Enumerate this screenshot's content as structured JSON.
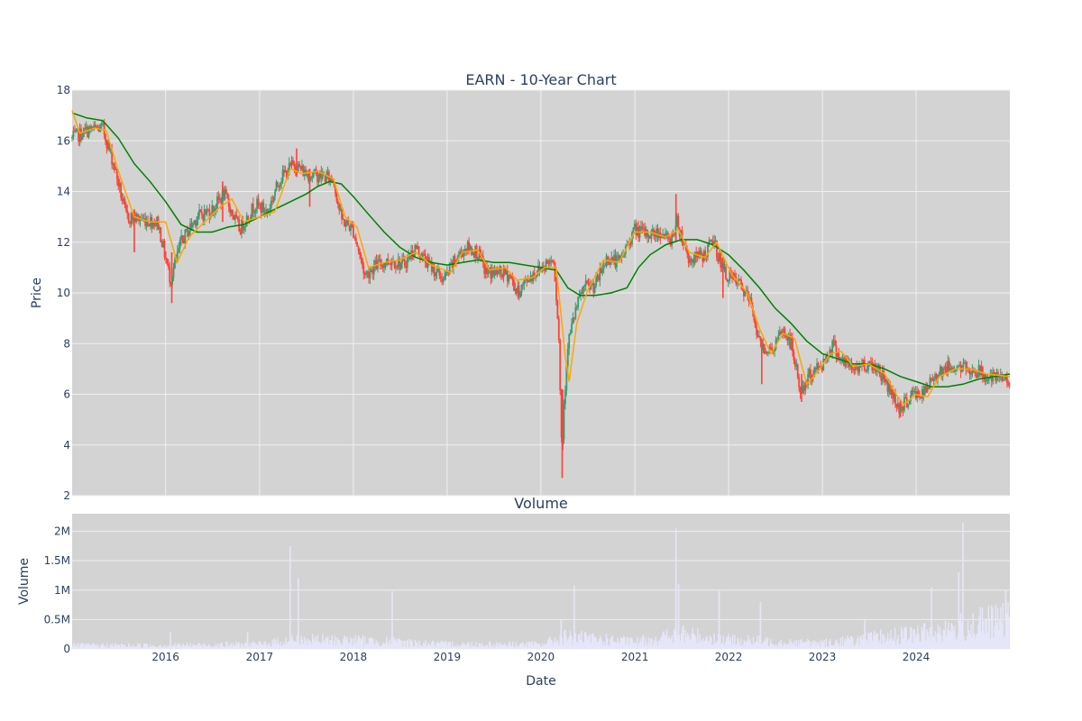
{
  "chart_data": [
    {
      "type": "candlestick",
      "title": "EARN - 10-Year Chart",
      "ylabel": "Price",
      "xlabel": "",
      "ylim": [
        2,
        18
      ],
      "y_ticks": [
        "2",
        "4",
        "6",
        "8",
        "10",
        "12",
        "14",
        "16",
        "18"
      ],
      "x_range": [
        "2015-01-02",
        "2024-12-31"
      ],
      "x_ticks": [
        "2016",
        "2017",
        "2018",
        "2019",
        "2020",
        "2021",
        "2022",
        "2023",
        "2024"
      ],
      "grid": true,
      "colors": {
        "plot_bg": "#d3d3d3",
        "grid": "#f0f0f0",
        "up": "#3d9970",
        "down": "#ff4136",
        "ma_short": "#ffa500",
        "ma_long": "#008000"
      },
      "close_path": [
        [
          "2015-01-02",
          16.1
        ],
        [
          "2015-03-01",
          16.4
        ],
        [
          "2015-05-01",
          16.5
        ],
        [
          "2015-06-15",
          15.0
        ],
        [
          "2015-08-01",
          13.0
        ],
        [
          "2015-10-01",
          12.9
        ],
        [
          "2015-12-01",
          12.8
        ],
        [
          "2016-01-20",
          10.5
        ],
        [
          "2016-03-01",
          12.0
        ],
        [
          "2016-05-01",
          13.0
        ],
        [
          "2016-07-01",
          13.3
        ],
        [
          "2016-08-15",
          13.9
        ],
        [
          "2016-10-15",
          12.5
        ],
        [
          "2016-12-15",
          13.5
        ],
        [
          "2017-02-01",
          13.2
        ],
        [
          "2017-03-20",
          14.5
        ],
        [
          "2017-05-15",
          15.1
        ],
        [
          "2017-07-01",
          14.7
        ],
        [
          "2017-09-01",
          14.6
        ],
        [
          "2017-10-15",
          14.5
        ],
        [
          "2017-11-15",
          12.9
        ],
        [
          "2017-12-31",
          12.5
        ],
        [
          "2018-02-15",
          10.7
        ],
        [
          "2018-04-01",
          11.1
        ],
        [
          "2018-06-01",
          11.3
        ],
        [
          "2018-07-15",
          11.1
        ],
        [
          "2018-08-31",
          11.8
        ],
        [
          "2018-10-15",
          11.2
        ],
        [
          "2018-12-20",
          10.5
        ],
        [
          "2019-02-01",
          11.3
        ],
        [
          "2019-03-15",
          11.8
        ],
        [
          "2019-04-30",
          11.6
        ],
        [
          "2019-06-01",
          10.8
        ],
        [
          "2019-07-15",
          10.8
        ],
        [
          "2019-09-01",
          10.7
        ],
        [
          "2019-10-01",
          10.0
        ],
        [
          "2019-11-15",
          10.6
        ],
        [
          "2020-01-02",
          11.0
        ],
        [
          "2020-02-20",
          11.4
        ],
        [
          "2020-03-10",
          8.5
        ],
        [
          "2020-03-23",
          3.5
        ],
        [
          "2020-03-30",
          5.5
        ],
        [
          "2020-04-15",
          8.0
        ],
        [
          "2020-05-15",
          9.3
        ],
        [
          "2020-06-15",
          10.2
        ],
        [
          "2020-08-01",
          10.3
        ],
        [
          "2020-09-15",
          11.4
        ],
        [
          "2020-11-01",
          11.2
        ],
        [
          "2020-12-31",
          12.5
        ],
        [
          "2021-02-15",
          12.3
        ],
        [
          "2021-04-15",
          12.4
        ],
        [
          "2021-05-15",
          12.0
        ],
        [
          "2021-06-15",
          12.8
        ],
        [
          "2021-07-31",
          11.3
        ],
        [
          "2021-09-30",
          11.5
        ],
        [
          "2021-11-01",
          12.1
        ],
        [
          "2021-12-15",
          10.8
        ],
        [
          "2022-02-15",
          10.3
        ],
        [
          "2022-04-01",
          9.5
        ],
        [
          "2022-05-01",
          8.0
        ],
        [
          "2022-06-15",
          7.7
        ],
        [
          "2022-08-01",
          8.5
        ],
        [
          "2022-09-01",
          8.0
        ],
        [
          "2022-10-10",
          6.0
        ],
        [
          "2022-11-15",
          6.8
        ],
        [
          "2023-01-01",
          7.2
        ],
        [
          "2023-02-10",
          8.0
        ],
        [
          "2023-03-20",
          7.3
        ],
        [
          "2023-05-01",
          7.0
        ],
        [
          "2023-06-15",
          7.2
        ],
        [
          "2023-08-01",
          7.1
        ],
        [
          "2023-09-15",
          6.3
        ],
        [
          "2023-10-31",
          5.4
        ],
        [
          "2023-12-15",
          6.0
        ],
        [
          "2024-02-01",
          6.0
        ],
        [
          "2024-03-15",
          6.8
        ],
        [
          "2024-04-15",
          7.0
        ],
        [
          "2024-06-01",
          7.1
        ],
        [
          "2024-07-15",
          7.0
        ],
        [
          "2024-09-01",
          6.9
        ],
        [
          "2024-10-15",
          6.6
        ],
        [
          "2024-12-31",
          6.6
        ]
      ],
      "wicks": [
        [
          "2015-09-01",
          11.6,
          13.3
        ],
        [
          "2016-01-25",
          9.6,
          11.6
        ],
        [
          "2016-08-10",
          12.8,
          14.4
        ],
        [
          "2017-05-25",
          14.6,
          15.7
        ],
        [
          "2017-07-15",
          13.4,
          14.9
        ],
        [
          "2020-03-24",
          2.7,
          5.0
        ],
        [
          "2020-03-26",
          3.8,
          6.2
        ],
        [
          "2021-06-10",
          12.0,
          13.9
        ],
        [
          "2021-12-10",
          9.8,
          11.4
        ],
        [
          "2022-05-10",
          6.4,
          8.2
        ],
        [
          "2022-10-12",
          5.7,
          6.8
        ],
        [
          "2023-11-01",
          5.1,
          5.8
        ]
      ],
      "ma_short_path": [
        [
          "2015-01-02",
          17.2
        ],
        [
          "2015-02-01",
          16.3
        ],
        [
          "2015-04-01",
          16.5
        ],
        [
          "2015-05-15",
          16.4
        ],
        [
          "2015-07-01",
          14.8
        ],
        [
          "2015-09-01",
          13.0
        ],
        [
          "2015-11-01",
          12.8
        ],
        [
          "2016-01-01",
          12.8
        ],
        [
          "2016-02-15",
          11.2
        ],
        [
          "2016-04-01",
          12.2
        ],
        [
          "2016-06-01",
          12.8
        ],
        [
          "2016-08-01",
          13.4
        ],
        [
          "2016-09-15",
          13.7
        ],
        [
          "2016-11-01",
          12.8
        ],
        [
          "2017-01-01",
          13.0
        ],
        [
          "2017-03-01",
          13.2
        ],
        [
          "2017-05-01",
          14.9
        ],
        [
          "2017-06-15",
          14.7
        ],
        [
          "2017-08-15",
          14.8
        ],
        [
          "2017-10-15",
          14.5
        ],
        [
          "2017-11-30",
          13.0
        ],
        [
          "2018-01-15",
          12.6
        ],
        [
          "2018-03-01",
          11.0
        ],
        [
          "2018-05-01",
          11.2
        ],
        [
          "2018-07-01",
          11.3
        ],
        [
          "2018-09-01",
          11.6
        ],
        [
          "2018-10-31",
          11.1
        ],
        [
          "2019-01-15",
          10.8
        ],
        [
          "2019-03-01",
          11.6
        ],
        [
          "2019-04-30",
          11.7
        ],
        [
          "2019-06-15",
          10.9
        ],
        [
          "2019-08-15",
          11.0
        ],
        [
          "2019-10-01",
          10.5
        ],
        [
          "2019-11-30",
          10.6
        ],
        [
          "2020-01-15",
          11.0
        ],
        [
          "2020-03-01",
          11.0
        ],
        [
          "2020-04-05",
          7.5
        ],
        [
          "2020-04-20",
          6.5
        ],
        [
          "2020-05-20",
          8.8
        ],
        [
          "2020-07-01",
          10.1
        ],
        [
          "2020-09-01",
          11.3
        ],
        [
          "2020-11-01",
          11.2
        ],
        [
          "2020-12-31",
          12.4
        ],
        [
          "2021-03-01",
          12.4
        ],
        [
          "2021-05-01",
          12.2
        ],
        [
          "2021-06-20",
          12.5
        ],
        [
          "2021-08-01",
          11.6
        ],
        [
          "2021-10-01",
          11.4
        ],
        [
          "2021-11-15",
          12.0
        ],
        [
          "2022-01-15",
          10.7
        ],
        [
          "2022-03-15",
          10.0
        ],
        [
          "2022-05-01",
          8.6
        ],
        [
          "2022-06-15",
          7.6
        ],
        [
          "2022-08-01",
          8.4
        ],
        [
          "2022-09-15",
          8.2
        ],
        [
          "2022-11-01",
          6.4
        ],
        [
          "2022-12-15",
          6.9
        ],
        [
          "2023-02-01",
          7.6
        ],
        [
          "2023-03-15",
          7.7
        ],
        [
          "2023-05-01",
          7.1
        ],
        [
          "2023-07-01",
          7.2
        ],
        [
          "2023-09-01",
          6.8
        ],
        [
          "2023-10-15",
          6.0
        ],
        [
          "2023-11-15",
          5.6
        ],
        [
          "2024-01-01",
          6.0
        ],
        [
          "2024-02-15",
          5.9
        ],
        [
          "2024-04-01",
          6.7
        ],
        [
          "2024-06-01",
          7.0
        ],
        [
          "2024-08-01",
          7.0
        ],
        [
          "2024-10-01",
          6.8
        ],
        [
          "2024-12-31",
          6.7
        ]
      ],
      "ma_long_path": [
        [
          "2015-01-02",
          17.1
        ],
        [
          "2015-03-01",
          16.9
        ],
        [
          "2015-05-01",
          16.8
        ],
        [
          "2015-07-01",
          16.1
        ],
        [
          "2015-09-01",
          15.1
        ],
        [
          "2015-11-01",
          14.4
        ],
        [
          "2016-01-01",
          13.6
        ],
        [
          "2016-03-01",
          12.7
        ],
        [
          "2016-05-01",
          12.4
        ],
        [
          "2016-07-01",
          12.4
        ],
        [
          "2016-09-01",
          12.6
        ],
        [
          "2016-11-01",
          12.7
        ],
        [
          "2017-01-01",
          13.0
        ],
        [
          "2017-03-01",
          13.3
        ],
        [
          "2017-05-01",
          13.6
        ],
        [
          "2017-07-01",
          13.9
        ],
        [
          "2017-08-15",
          14.2
        ],
        [
          "2017-10-01",
          14.4
        ],
        [
          "2017-11-15",
          14.3
        ],
        [
          "2018-01-01",
          13.8
        ],
        [
          "2018-03-01",
          13.1
        ],
        [
          "2018-05-01",
          12.4
        ],
        [
          "2018-07-01",
          11.8
        ],
        [
          "2018-09-01",
          11.4
        ],
        [
          "2018-11-01",
          11.2
        ],
        [
          "2019-01-01",
          11.1
        ],
        [
          "2019-03-01",
          11.2
        ],
        [
          "2019-05-01",
          11.3
        ],
        [
          "2019-07-01",
          11.2
        ],
        [
          "2019-09-01",
          11.2
        ],
        [
          "2019-11-01",
          11.1
        ],
        [
          "2020-01-01",
          11.0
        ],
        [
          "2020-03-01",
          10.9
        ],
        [
          "2020-04-15",
          10.2
        ],
        [
          "2020-06-01",
          9.9
        ],
        [
          "2020-08-01",
          9.9
        ],
        [
          "2020-10-01",
          10.0
        ],
        [
          "2020-12-01",
          10.2
        ],
        [
          "2021-01-15",
          11.0
        ],
        [
          "2021-03-01",
          11.5
        ],
        [
          "2021-05-01",
          11.9
        ],
        [
          "2021-07-01",
          12.1
        ],
        [
          "2021-09-01",
          12.1
        ],
        [
          "2021-11-01",
          11.9
        ],
        [
          "2022-01-01",
          11.5
        ],
        [
          "2022-03-01",
          10.9
        ],
        [
          "2022-05-01",
          10.2
        ],
        [
          "2022-07-01",
          9.4
        ],
        [
          "2022-09-01",
          8.8
        ],
        [
          "2022-11-01",
          8.1
        ],
        [
          "2023-01-01",
          7.6
        ],
        [
          "2023-03-01",
          7.4
        ],
        [
          "2023-05-01",
          7.2
        ],
        [
          "2023-07-01",
          7.2
        ],
        [
          "2023-09-01",
          7.0
        ],
        [
          "2023-11-01",
          6.7
        ],
        [
          "2024-01-01",
          6.5
        ],
        [
          "2024-03-01",
          6.3
        ],
        [
          "2024-05-01",
          6.3
        ],
        [
          "2024-07-01",
          6.4
        ],
        [
          "2024-09-01",
          6.6
        ],
        [
          "2024-12-31",
          6.8
        ]
      ]
    },
    {
      "type": "bar",
      "title": "Volume",
      "ylabel": "Volume",
      "xlabel": "Date",
      "ylim": [
        0,
        2300000
      ],
      "y_ticks": [
        {
          "label": "0",
          "value": 0
        },
        {
          "label": "0.5M",
          "value": 500000
        },
        {
          "label": "1M",
          "value": 1000000
        },
        {
          "label": "1.5M",
          "value": 1500000
        },
        {
          "label": "2M",
          "value": 2000000
        }
      ],
      "x_ticks": [
        "2016",
        "2017",
        "2018",
        "2019",
        "2020",
        "2021",
        "2022",
        "2023",
        "2024"
      ],
      "colors": {
        "plot_bg": "#d3d3d3",
        "bar": "#e6e6fa"
      },
      "volume_base": [
        [
          "2015-01-02",
          60000
        ],
        [
          "2016-01-01",
          60000
        ],
        [
          "2017-01-01",
          80000
        ],
        [
          "2017-05-01",
          150000
        ],
        [
          "2018-01-01",
          150000
        ],
        [
          "2019-01-01",
          80000
        ],
        [
          "2020-01-01",
          80000
        ],
        [
          "2020-04-01",
          200000
        ],
        [
          "2021-01-01",
          120000
        ],
        [
          "2021-07-01",
          250000
        ],
        [
          "2022-01-01",
          150000
        ],
        [
          "2023-01-01",
          100000
        ],
        [
          "2024-01-01",
          250000
        ],
        [
          "2024-12-31",
          500000
        ]
      ],
      "volume_spikes": [
        [
          "2016-01-20",
          280000
        ],
        [
          "2016-11-15",
          280000
        ],
        [
          "2017-04-30",
          1750000
        ],
        [
          "2017-06-01",
          1200000
        ],
        [
          "2018-06-01",
          980000
        ],
        [
          "2020-03-20",
          500000
        ],
        [
          "2020-05-10",
          1080000
        ],
        [
          "2021-06-10",
          2050000
        ],
        [
          "2021-06-20",
          1100000
        ],
        [
          "2021-11-25",
          980000
        ],
        [
          "2022-05-05",
          800000
        ],
        [
          "2023-06-15",
          500000
        ],
        [
          "2024-03-01",
          1050000
        ],
        [
          "2024-06-15",
          1300000
        ],
        [
          "2024-07-01",
          2150000
        ],
        [
          "2024-12-15",
          1000000
        ]
      ]
    }
  ]
}
